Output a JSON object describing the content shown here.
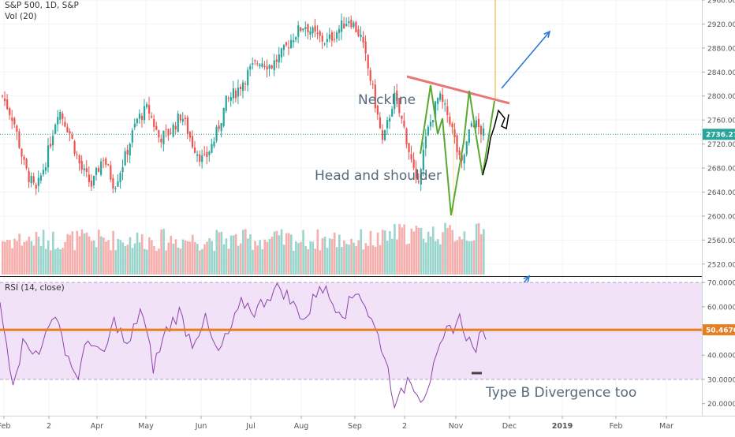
{
  "header": {
    "symbol_line": "S&P 500, 1D, S&P",
    "volume_label": "Vol (20)",
    "rsi_label": "RSI (14, close)"
  },
  "chart_data": [
    {
      "type": "candlestick",
      "title": "S&P 500, 1D, S&P",
      "ylim": [
        2500,
        2960
      ],
      "yticks": [
        2520,
        2560,
        2600,
        2640,
        2680,
        2720,
        2760,
        2800,
        2840,
        2880,
        2920,
        2960
      ],
      "last_price": "2736.27",
      "x_tick_labels": [
        "Feb",
        "2",
        "Apr",
        "May",
        "Jun",
        "Jul",
        "Aug",
        "Sep",
        "2",
        "Nov",
        "Dec",
        "2019",
        "Feb",
        "Mar"
      ],
      "close_path": [
        2800,
        2760,
        2680,
        2640,
        2700,
        2780,
        2740,
        2680,
        2650,
        2700,
        2650,
        2700,
        2760,
        2780,
        2730,
        2740,
        2770,
        2720,
        2690,
        2730,
        2790,
        2810,
        2840,
        2860,
        2850,
        2870,
        2900,
        2920,
        2900,
        2890,
        2910,
        2930,
        2900,
        2820,
        2720,
        2800,
        2740,
        2650,
        2740,
        2800,
        2760,
        2680,
        2760,
        2736
      ],
      "annotations": {
        "neckline": "Neckline",
        "pattern": "Head and shoulder"
      },
      "colors": {
        "up": "#26a69a",
        "down": "#ef5350",
        "neckline": "#e87878",
        "pattern": "#5aa832",
        "arrow": "#2c79d5",
        "vline": "#f5c26b",
        "last_price_bg": "#26a69a"
      }
    },
    {
      "type": "line",
      "title": "RSI (14, close)",
      "ylim": [
        15,
        72
      ],
      "yticks": [
        20,
        30,
        40,
        50,
        60,
        70
      ],
      "band": [
        30,
        70
      ],
      "current_value": "50.4670",
      "annotation": "Type B Divergence too",
      "rsi_path": [
        60,
        30,
        48,
        38,
        58,
        45,
        30,
        48,
        38,
        55,
        42,
        60,
        35,
        50,
        58,
        45,
        55,
        40,
        50,
        62,
        58,
        65,
        68,
        60,
        55,
        70,
        62,
        58,
        68,
        55,
        42,
        18,
        32,
        22,
        35,
        50,
        55,
        42,
        50
      ],
      "colors": {
        "line": "#8e44ad",
        "band_fill": "#f1e2f7",
        "level": "#e67e22"
      }
    }
  ]
}
